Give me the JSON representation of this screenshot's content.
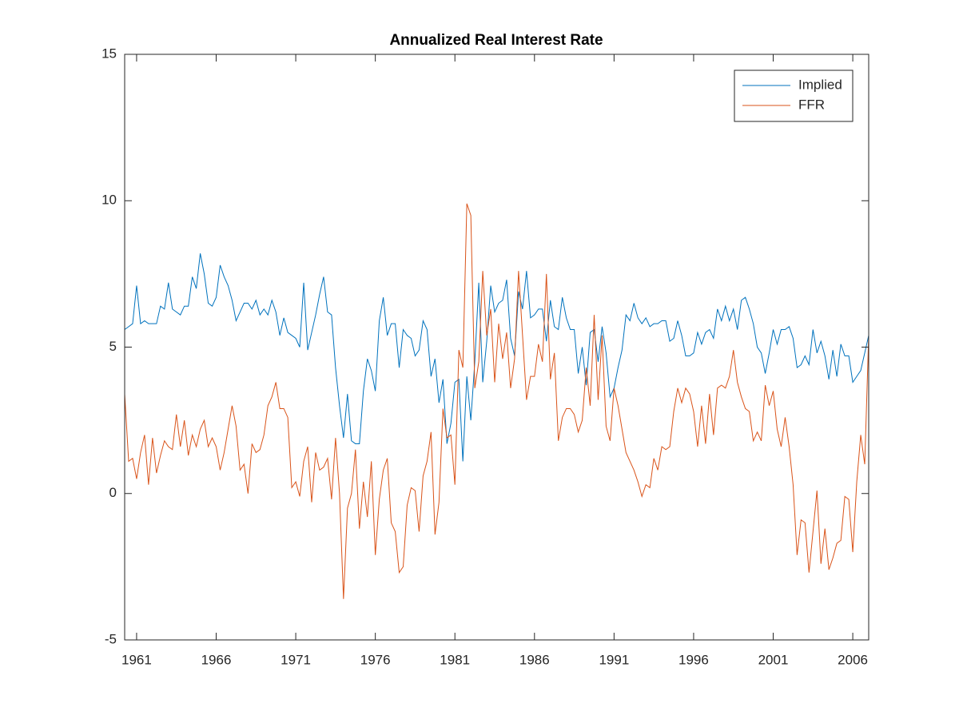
{
  "chart_data": {
    "type": "line",
    "title": "Annualized Real Interest Rate",
    "x": [
      1960.25,
      1960.5,
      1960.75,
      1961,
      1961.25,
      1961.5,
      1961.75,
      1962,
      1962.25,
      1962.5,
      1962.75,
      1963,
      1963.25,
      1963.5,
      1963.75,
      1964,
      1964.25,
      1964.5,
      1964.75,
      1965,
      1965.25,
      1965.5,
      1965.75,
      1966,
      1966.25,
      1966.5,
      1966.75,
      1967,
      1967.25,
      1967.5,
      1967.75,
      1968,
      1968.25,
      1968.5,
      1968.75,
      1969,
      1969.25,
      1969.5,
      1969.75,
      1970,
      1970.25,
      1970.5,
      1970.75,
      1971,
      1971.25,
      1971.5,
      1971.75,
      1972,
      1972.25,
      1972.5,
      1972.75,
      1973,
      1973.25,
      1973.5,
      1973.75,
      1974,
      1974.25,
      1974.5,
      1974.75,
      1975,
      1975.25,
      1975.5,
      1975.75,
      1976,
      1976.25,
      1976.5,
      1976.75,
      1977,
      1977.25,
      1977.5,
      1977.75,
      1978,
      1978.25,
      1978.5,
      1978.75,
      1979,
      1979.25,
      1979.5,
      1979.75,
      1980,
      1980.25,
      1980.5,
      1980.75,
      1981,
      1981.25,
      1981.5,
      1981.75,
      1982,
      1982.25,
      1982.5,
      1982.75,
      1983,
      1983.25,
      1983.5,
      1983.75,
      1984,
      1984.25,
      1984.5,
      1984.75,
      1985,
      1985.25,
      1985.5,
      1985.75,
      1986,
      1986.25,
      1986.5,
      1986.75,
      1987,
      1987.25,
      1987.5,
      1987.75,
      1988,
      1988.25,
      1988.5,
      1988.75,
      1989,
      1989.25,
      1989.5,
      1989.75,
      1990,
      1990.25,
      1990.5,
      1990.75,
      1991,
      1991.25,
      1991.5,
      1991.75,
      1992,
      1992.25,
      1992.5,
      1992.75,
      1993,
      1993.25,
      1993.5,
      1993.75,
      1994,
      1994.25,
      1994.5,
      1994.75,
      1995,
      1995.25,
      1995.5,
      1995.75,
      1996,
      1996.25,
      1996.5,
      1996.75,
      1997,
      1997.25,
      1997.5,
      1997.75,
      1998,
      1998.25,
      1998.5,
      1998.75,
      1999,
      1999.25,
      1999.5,
      1999.75,
      2000,
      2000.25,
      2000.5,
      2000.75,
      2001,
      2001.25,
      2001.5,
      2001.75,
      2002,
      2002.25,
      2002.5,
      2002.75,
      2003,
      2003.25,
      2003.5,
      2003.75,
      2004,
      2004.25,
      2004.5,
      2004.75,
      2005,
      2005.25,
      2005.5,
      2005.75,
      2006,
      2006.25,
      2006.5,
      2006.75,
      2007
    ],
    "series": [
      {
        "name": "Implied",
        "color": "#0072BD",
        "values": [
          5.6,
          5.7,
          5.8,
          7.1,
          5.8,
          5.9,
          5.8,
          5.8,
          5.8,
          6.4,
          6.3,
          7.2,
          6.3,
          6.2,
          6.1,
          6.4,
          6.4,
          7.4,
          7.0,
          8.2,
          7.5,
          6.5,
          6.4,
          6.7,
          7.8,
          7.4,
          7.1,
          6.6,
          5.9,
          6.2,
          6.5,
          6.5,
          6.3,
          6.6,
          6.1,
          6.3,
          6.1,
          6.6,
          6.2,
          5.4,
          6.0,
          5.5,
          5.4,
          5.3,
          5.0,
          7.2,
          4.9,
          5.5,
          6.1,
          6.8,
          7.4,
          6.2,
          6.1,
          4.3,
          3.0,
          1.9,
          3.4,
          1.8,
          1.7,
          1.7,
          3.5,
          4.6,
          4.2,
          3.5,
          5.9,
          6.7,
          5.4,
          5.8,
          5.8,
          4.3,
          5.6,
          5.4,
          5.3,
          4.7,
          4.9,
          5.9,
          5.6,
          4.0,
          4.6,
          3.1,
          3.9,
          1.7,
          2.4,
          3.8,
          3.9,
          1.1,
          4.0,
          2.5,
          4.5,
          7.2,
          3.8,
          5.2,
          7.1,
          6.2,
          6.5,
          6.6,
          7.3,
          5.3,
          4.7,
          6.9,
          6.3,
          7.6,
          6.0,
          6.1,
          6.3,
          6.3,
          5.2,
          6.6,
          5.7,
          5.6,
          6.7,
          6.0,
          5.6,
          5.6,
          4.1,
          5.0,
          3.7,
          5.5,
          5.6,
          4.5,
          5.7,
          4.8,
          3.3,
          3.6,
          4.3,
          4.9,
          6.1,
          5.9,
          6.5,
          6.0,
          5.8,
          6.0,
          5.7,
          5.8,
          5.8,
          5.9,
          5.9,
          5.2,
          5.3,
          5.9,
          5.4,
          4.7,
          4.7,
          4.8,
          5.5,
          5.1,
          5.5,
          5.6,
          5.3,
          6.3,
          5.9,
          6.4,
          5.9,
          6.3,
          5.6,
          6.6,
          6.7,
          6.3,
          5.8,
          5.0,
          4.8,
          4.1,
          4.8,
          5.6,
          5.1,
          5.6,
          5.6,
          5.7,
          5.3,
          4.3,
          4.4,
          4.7,
          4.4,
          5.6,
          4.8,
          5.2,
          4.7,
          3.9,
          4.9,
          4.0,
          5.1,
          4.7,
          4.7,
          3.8,
          4.0,
          4.2,
          4.8,
          5.4
        ]
      },
      {
        "name": "FFR",
        "color": "#D95319",
        "values": [
          3.4,
          1.1,
          1.2,
          0.5,
          1.4,
          2.0,
          0.3,
          1.9,
          0.7,
          1.3,
          1.8,
          1.6,
          1.5,
          2.7,
          1.6,
          2.5,
          1.3,
          2.0,
          1.6,
          2.2,
          2.5,
          1.6,
          1.9,
          1.6,
          0.8,
          1.4,
          2.2,
          3.0,
          2.3,
          0.8,
          1.0,
          0.0,
          1.7,
          1.4,
          1.5,
          2.0,
          3.0,
          3.3,
          3.8,
          2.9,
          2.9,
          2.6,
          0.2,
          0.4,
          -0.1,
          1.1,
          1.6,
          -0.3,
          1.4,
          0.8,
          0.9,
          1.2,
          -0.2,
          1.9,
          0.0,
          -3.6,
          -0.5,
          0.0,
          1.5,
          -1.2,
          0.4,
          -0.8,
          1.1,
          -2.1,
          -0.2,
          0.8,
          1.2,
          -1.0,
          -1.3,
          -2.7,
          -2.5,
          -0.4,
          0.2,
          0.1,
          -1.3,
          0.6,
          1.1,
          2.1,
          -1.4,
          -0.3,
          2.9,
          1.9,
          2.0,
          0.3,
          4.9,
          4.3,
          9.9,
          9.5,
          3.6,
          4.5,
          7.6,
          5.4,
          6.3,
          3.8,
          5.8,
          4.6,
          5.5,
          3.6,
          4.6,
          7.6,
          5.4,
          3.2,
          4.0,
          4.0,
          5.1,
          4.5,
          7.5,
          3.9,
          4.8,
          1.8,
          2.6,
          2.9,
          2.9,
          2.7,
          2.1,
          2.5,
          4.3,
          3.0,
          6.1,
          3.2,
          5.4,
          2.3,
          1.8,
          3.6,
          3.0,
          2.2,
          1.4,
          1.1,
          0.8,
          0.4,
          -0.1,
          0.3,
          0.2,
          1.2,
          0.8,
          1.6,
          1.5,
          1.6,
          2.8,
          3.6,
          3.1,
          3.6,
          3.4,
          2.8,
          1.6,
          3.0,
          1.7,
          3.4,
          2.0,
          3.6,
          3.7,
          3.6,
          4.0,
          4.9,
          3.8,
          3.3,
          2.9,
          2.8,
          1.8,
          2.1,
          1.8,
          3.7,
          3.0,
          3.5,
          2.2,
          1.6,
          2.6,
          1.6,
          0.3,
          -2.1,
          -0.9,
          -1.0,
          -2.7,
          -1.3,
          0.1,
          -2.4,
          -1.2,
          -2.6,
          -2.2,
          -1.7,
          -1.6,
          -0.1,
          -0.2,
          -2.0,
          0.4,
          2.0,
          1.0,
          5.4
        ]
      }
    ],
    "xlim": [
      1960.25,
      2007
    ],
    "xticks": [
      1961,
      1966,
      1971,
      1976,
      1981,
      1986,
      1991,
      1996,
      2001,
      2006
    ],
    "ylim": [
      -5,
      15
    ],
    "yticks": [
      -5,
      0,
      5,
      10,
      15
    ],
    "legend": "northeast"
  }
}
